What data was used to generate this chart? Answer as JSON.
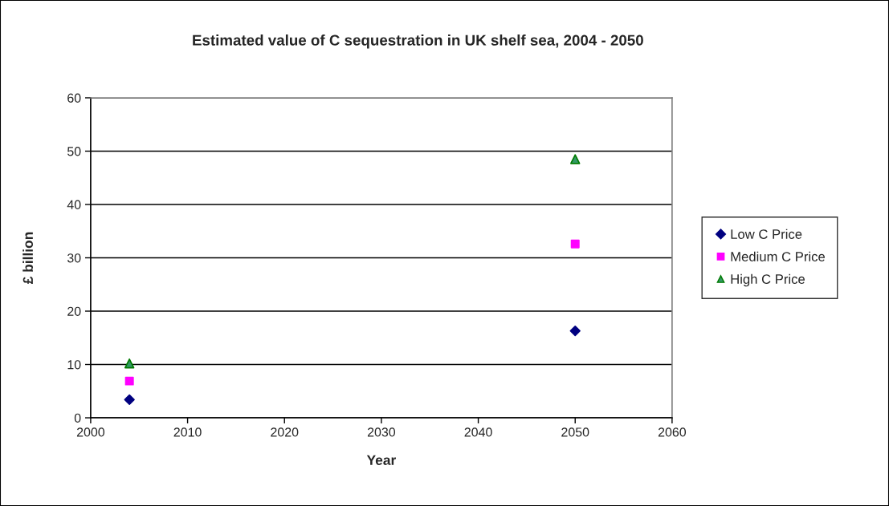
{
  "chart_data": {
    "type": "scatter",
    "title": "Estimated value of C sequestration in UK shelf sea, 2004 - 2050",
    "xlabel": "Year",
    "ylabel": "£ billion",
    "x": [
      2004,
      2050
    ],
    "series": [
      {
        "name": "Low C Price",
        "color": "#000080",
        "marker": "diamond",
        "values": [
          3.4,
          16.3
        ]
      },
      {
        "name": "Medium C Price",
        "color": "#ff00ff",
        "marker": "square",
        "values": [
          6.9,
          32.6
        ]
      },
      {
        "name": "High C Price",
        "color": "#339966",
        "marker": "triangle",
        "values": [
          10.2,
          48.5
        ]
      }
    ],
    "xlim": [
      2000,
      2060
    ],
    "xticks": [
      2000,
      2010,
      2020,
      2030,
      2040,
      2050,
      2060
    ],
    "ylim": [
      0,
      60
    ],
    "yticks": [
      0,
      10,
      20,
      30,
      40,
      50,
      60
    ],
    "grid": "y",
    "legend": "right"
  }
}
